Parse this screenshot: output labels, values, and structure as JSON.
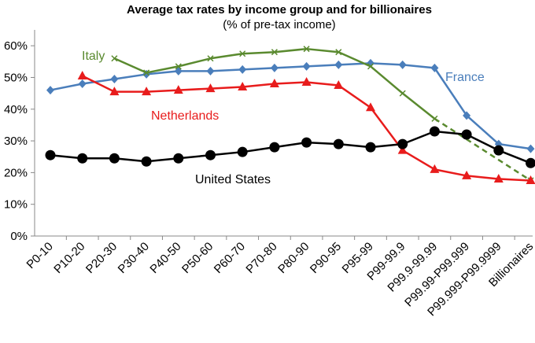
{
  "chart_data": {
    "type": "line",
    "title": "Average tax rates by income group and for billionaires",
    "subtitle": "(% of pre-tax income)",
    "xlabel": "",
    "ylabel": "",
    "ylim": [
      0,
      65
    ],
    "yticks": [
      "0%",
      "10%",
      "20%",
      "30%",
      "40%",
      "50%",
      "60%"
    ],
    "categories": [
      "P0-10",
      "P10-20",
      "P20-30",
      "P30-40",
      "P40-50",
      "P50-60",
      "P60-70",
      "P70-80",
      "P80-90",
      "P90-95",
      "P95-99",
      "P99-99.9",
      "P99.9-99.99",
      "P99.99-P99.999",
      "P99.999-P99.9999",
      "Billionaires"
    ],
    "grid": false,
    "legend": "inline labels",
    "series": [
      {
        "name": "France",
        "color": "#4a7ebb",
        "marker": "diamond",
        "values": [
          46,
          48,
          49.5,
          51,
          52,
          52,
          52.5,
          53,
          53.5,
          54,
          54.5,
          54,
          53,
          38,
          29,
          27.5
        ]
      },
      {
        "name": "Italy",
        "color": "#5a8a2f",
        "marker": "x",
        "values": [
          null,
          null,
          56,
          51.5,
          53.5,
          56,
          57.5,
          58,
          59,
          58,
          53.5,
          45,
          37,
          null,
          null,
          17.5
        ],
        "dashed_segment": [
          12,
          15
        ]
      },
      {
        "name": "Netherlands",
        "color": "#e81c1c",
        "marker": "triangle",
        "values": [
          null,
          50.5,
          45.5,
          45.5,
          46,
          46.5,
          47,
          48,
          48.5,
          47.5,
          40.5,
          27,
          21,
          19,
          18,
          17.5
        ]
      },
      {
        "name": "United States",
        "color": "#000000",
        "marker": "circle",
        "values": [
          25.5,
          24.5,
          24.5,
          23.5,
          24.5,
          25.5,
          26.5,
          28,
          29.5,
          29,
          28,
          29,
          33,
          32,
          27,
          23
        ]
      }
    ]
  }
}
